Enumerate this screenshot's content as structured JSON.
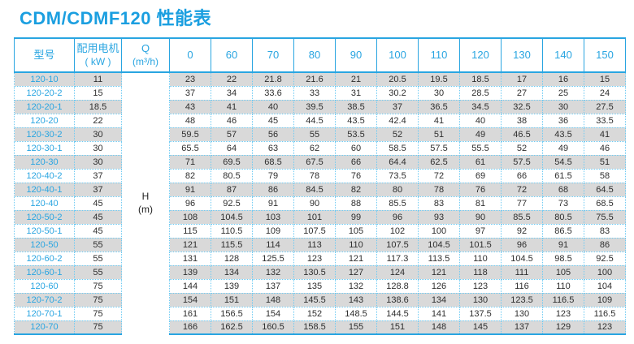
{
  "page_title": "CDM/CDMF120 性能表",
  "colors": {
    "accent_blue": "#29a5e1",
    "title_blue": "#1b9fe0",
    "dotted_border_blue": "#6fcbf3",
    "stripe_gray": "#d9d9d9",
    "value_text": "#2e2e2e"
  },
  "table": {
    "model_header": "型号",
    "motor_header_line1": "配用电机",
    "motor_header_line2": "( kW )",
    "q_header_line1": "Q",
    "q_header_line2": "(m³/h)",
    "flow_columns": [
      "0",
      "60",
      "70",
      "80",
      "90",
      "100",
      "110",
      "120",
      "130",
      "140",
      "150"
    ],
    "h_label_line1": "H",
    "h_label_line2": "(m)",
    "rows": [
      {
        "model": "120-10",
        "motor_kw": "11",
        "values": [
          "23",
          "22",
          "21.8",
          "21.6",
          "21",
          "20.5",
          "19.5",
          "18.5",
          "17",
          "16",
          "15"
        ]
      },
      {
        "model": "120-20-2",
        "motor_kw": "15",
        "values": [
          "37",
          "34",
          "33.6",
          "33",
          "31",
          "30.2",
          "30",
          "28.5",
          "27",
          "25",
          "24"
        ]
      },
      {
        "model": "120-20-1",
        "motor_kw": "18.5",
        "values": [
          "43",
          "41",
          "40",
          "39.5",
          "38.5",
          "37",
          "36.5",
          "34.5",
          "32.5",
          "30",
          "27.5"
        ]
      },
      {
        "model": "120-20",
        "motor_kw": "22",
        "values": [
          "48",
          "46",
          "45",
          "44.5",
          "43.5",
          "42.4",
          "41",
          "40",
          "38",
          "36",
          "33.5"
        ]
      },
      {
        "model": "120-30-2",
        "motor_kw": "30",
        "values": [
          "59.5",
          "57",
          "56",
          "55",
          "53.5",
          "52",
          "51",
          "49",
          "46.5",
          "43.5",
          "41"
        ]
      },
      {
        "model": "120-30-1",
        "motor_kw": "30",
        "values": [
          "65.5",
          "64",
          "63",
          "62",
          "60",
          "58.5",
          "57.5",
          "55.5",
          "52",
          "49",
          "46"
        ]
      },
      {
        "model": "120-30",
        "motor_kw": "30",
        "values": [
          "71",
          "69.5",
          "68.5",
          "67.5",
          "66",
          "64.4",
          "62.5",
          "61",
          "57.5",
          "54.5",
          "51"
        ]
      },
      {
        "model": "120-40-2",
        "motor_kw": "37",
        "values": [
          "82",
          "80.5",
          "79",
          "78",
          "76",
          "73.5",
          "72",
          "69",
          "66",
          "61.5",
          "58"
        ]
      },
      {
        "model": "120-40-1",
        "motor_kw": "37",
        "values": [
          "91",
          "87",
          "86",
          "84.5",
          "82",
          "80",
          "78",
          "76",
          "72",
          "68",
          "64.5"
        ]
      },
      {
        "model": "120-40",
        "motor_kw": "45",
        "values": [
          "96",
          "92.5",
          "91",
          "90",
          "88",
          "85.5",
          "83",
          "81",
          "77",
          "73",
          "68.5"
        ]
      },
      {
        "model": "120-50-2",
        "motor_kw": "45",
        "values": [
          "108",
          "104.5",
          "103",
          "101",
          "99",
          "96",
          "93",
          "90",
          "85.5",
          "80.5",
          "75.5"
        ]
      },
      {
        "model": "120-50-1",
        "motor_kw": "45",
        "values": [
          "115",
          "110.5",
          "109",
          "107.5",
          "105",
          "102",
          "100",
          "97",
          "92",
          "86.5",
          "83"
        ]
      },
      {
        "model": "120-50",
        "motor_kw": "55",
        "values": [
          "121",
          "115.5",
          "114",
          "113",
          "110",
          "107.5",
          "104.5",
          "101.5",
          "96",
          "91",
          "86"
        ]
      },
      {
        "model": "120-60-2",
        "motor_kw": "55",
        "values": [
          "131",
          "128",
          "125.5",
          "123",
          "121",
          "117.3",
          "113.5",
          "110",
          "104.5",
          "98.5",
          "92.5"
        ]
      },
      {
        "model": "120-60-1",
        "motor_kw": "55",
        "values": [
          "139",
          "134",
          "132",
          "130.5",
          "127",
          "124",
          "121",
          "118",
          "111",
          "105",
          "100"
        ]
      },
      {
        "model": "120-60",
        "motor_kw": "75",
        "values": [
          "144",
          "139",
          "137",
          "135",
          "132",
          "128.8",
          "126",
          "123",
          "116",
          "110",
          "104"
        ]
      },
      {
        "model": "120-70-2",
        "motor_kw": "75",
        "values": [
          "154",
          "151",
          "148",
          "145.5",
          "143",
          "138.6",
          "134",
          "130",
          "123.5",
          "116.5",
          "109"
        ]
      },
      {
        "model": "120-70-1",
        "motor_kw": "75",
        "values": [
          "161",
          "156.5",
          "154",
          "152",
          "148.5",
          "144.5",
          "141",
          "137.5",
          "130",
          "123",
          "116.5"
        ]
      },
      {
        "model": "120-70",
        "motor_kw": "75",
        "values": [
          "166",
          "162.5",
          "160.5",
          "158.5",
          "155",
          "151",
          "148",
          "145",
          "137",
          "129",
          "123"
        ]
      }
    ]
  }
}
